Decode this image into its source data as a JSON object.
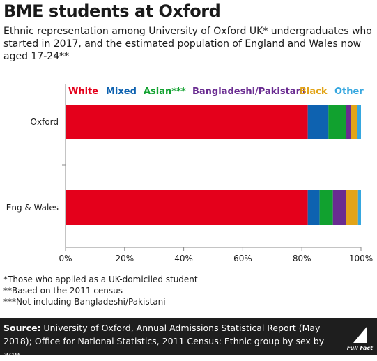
{
  "title": "BME students at Oxford",
  "subtitle": "Ethnic representation among University of Oxford UK* undergraduates who started in 2017, and the estimated population of England and Wales now aged 17-24**",
  "footnotes": [
    "*Those who applied as a UK-domiciled student",
    "**Based on the 2011 census",
    "***Not including Bangladeshi/Pakistani"
  ],
  "source": {
    "label": "Source:",
    "text": "University of Oxford, Annual Admissions Statistical Report (May 2018); Office for National Statistics, 2011 Census: Ethnic group by sex by age"
  },
  "logo": {
    "icon": "full-fact-logo-icon",
    "text": "Full Fact"
  },
  "chart_data": {
    "type": "bar",
    "orientation": "horizontal",
    "stacked": true,
    "title": "BME students at Oxford",
    "categories": [
      "Oxford",
      "Eng & Wales"
    ],
    "series": [
      {
        "name": "White",
        "color": "#e4001b",
        "values": [
          82,
          82
        ]
      },
      {
        "name": "Mixed",
        "color": "#0e62b0",
        "values": [
          7,
          4
        ]
      },
      {
        "name": "Asian***",
        "color": "#11a12f",
        "values": [
          6,
          4.5
        ]
      },
      {
        "name": "Bangladeshi/Pakistani",
        "color": "#6a2c91",
        "values": [
          1.7,
          4.5
        ]
      },
      {
        "name": "Black",
        "color": "#e2a418",
        "values": [
          2,
          4
        ]
      },
      {
        "name": "Other",
        "color": "#36a7df",
        "values": [
          1.3,
          1
        ]
      }
    ],
    "xlim": [
      0,
      100
    ],
    "xticks": [
      "0%",
      "20%",
      "40%",
      "60%",
      "80%",
      "100%"
    ],
    "legend_position": "top",
    "grid": false
  }
}
